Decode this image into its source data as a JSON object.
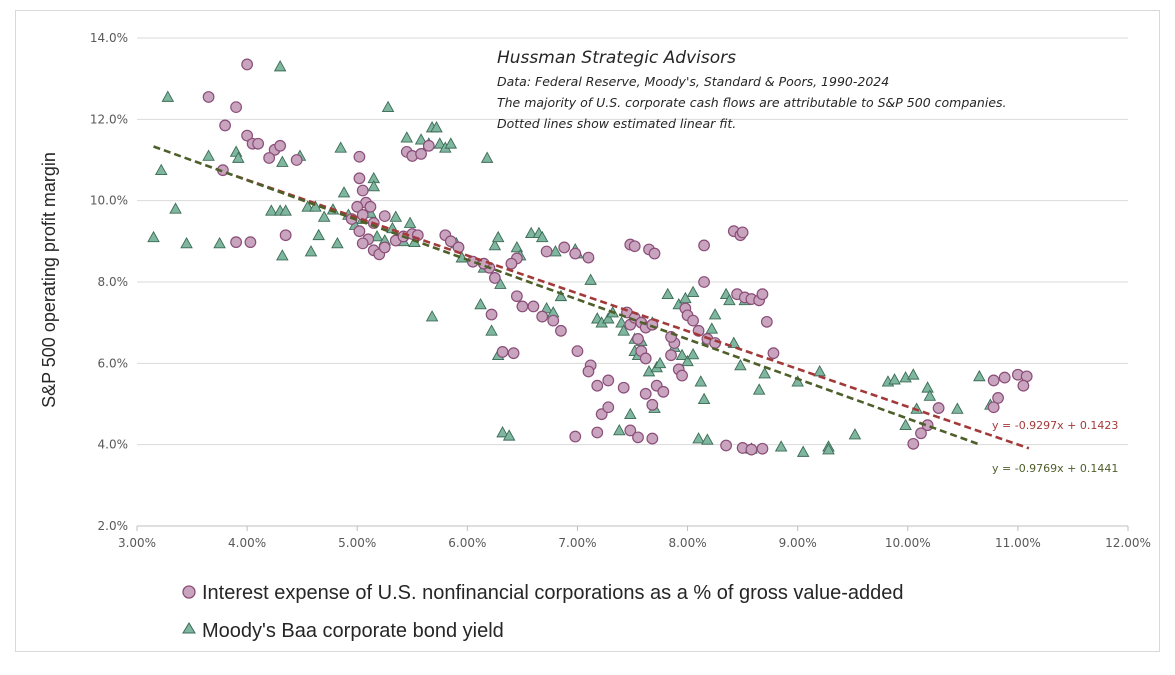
{
  "chart_data": {
    "type": "scatter",
    "ylabel": "S&P 500 operating profit margin",
    "xlabel": "",
    "xlim": [
      0.03,
      0.12
    ],
    "ylim": [
      0.02,
      0.14
    ],
    "x_ticks": [
      "3.00%",
      "4.00%",
      "5.00%",
      "6.00%",
      "7.00%",
      "8.00%",
      "9.00%",
      "10.00%",
      "11.00%",
      "12.00%"
    ],
    "y_ticks": [
      "2.0%",
      "4.0%",
      "6.0%",
      "8.0%",
      "10.0%",
      "12.0%",
      "14.0%"
    ],
    "grid": "horizontal",
    "annotations": {
      "source_title": "Hussman Strategic Advisors",
      "lines": [
        "Data: Federal Reserve, Moody's, Standard & Poors, 1990-2024",
        "The majority of U.S. corporate cash flows are attributable to S&P 500 companies.",
        "Dotted lines show estimated linear fit."
      ]
    },
    "series": [
      {
        "name": "Interest expense of U.S. nonfinancial corporations as a % of gross value-added",
        "marker": "circle",
        "color": "#c9a4bf",
        "edge": "#8a4e78",
        "trend": {
          "slope": -0.9297,
          "intercept": 0.1423,
          "label": "y = -0.9297x + 0.1423",
          "color": "#a33a3a",
          "x_range": [
            0.039,
            0.111
          ]
        },
        "points": [
          [
            0.0365,
            0.1255
          ],
          [
            0.039,
            0.123
          ],
          [
            0.04,
            0.1335
          ],
          [
            0.038,
            0.1185
          ],
          [
            0.0378,
            0.1075
          ],
          [
            0.04,
            0.116
          ],
          [
            0.0405,
            0.114
          ],
          [
            0.041,
            0.114
          ],
          [
            0.0425,
            0.1125
          ],
          [
            0.043,
            0.1135
          ],
          [
            0.042,
            0.1105
          ],
          [
            0.0445,
            0.11
          ],
          [
            0.0435,
            0.0915
          ],
          [
            0.039,
            0.0898
          ],
          [
            0.0403,
            0.0898
          ],
          [
            0.0502,
            0.1108
          ],
          [
            0.0502,
            0.1055
          ],
          [
            0.0505,
            0.1025
          ],
          [
            0.0508,
            0.0995
          ],
          [
            0.05,
            0.0985
          ],
          [
            0.0512,
            0.0985
          ],
          [
            0.0505,
            0.0965
          ],
          [
            0.0495,
            0.0955
          ],
          [
            0.0515,
            0.0945
          ],
          [
            0.0525,
            0.0962
          ],
          [
            0.0502,
            0.0925
          ],
          [
            0.051,
            0.0905
          ],
          [
            0.0505,
            0.0895
          ],
          [
            0.0515,
            0.0878
          ],
          [
            0.052,
            0.0868
          ],
          [
            0.0525,
            0.0885
          ],
          [
            0.0535,
            0.0902
          ],
          [
            0.0542,
            0.0912
          ],
          [
            0.055,
            0.0918
          ],
          [
            0.0555,
            0.0915
          ],
          [
            0.0545,
            0.112
          ],
          [
            0.055,
            0.111
          ],
          [
            0.0558,
            0.1115
          ],
          [
            0.0565,
            0.1135
          ],
          [
            0.058,
            0.0915
          ],
          [
            0.0585,
            0.09
          ],
          [
            0.0592,
            0.0885
          ],
          [
            0.062,
            0.0835
          ],
          [
            0.0615,
            0.0845
          ],
          [
            0.0625,
            0.081
          ],
          [
            0.0605,
            0.085
          ],
          [
            0.0645,
            0.0858
          ],
          [
            0.064,
            0.0845
          ],
          [
            0.0642,
            0.0625
          ],
          [
            0.0632,
            0.0628
          ],
          [
            0.0622,
            0.072
          ],
          [
            0.0645,
            0.0765
          ],
          [
            0.065,
            0.074
          ],
          [
            0.066,
            0.074
          ],
          [
            0.0668,
            0.0715
          ],
          [
            0.0672,
            0.0875
          ],
          [
            0.0688,
            0.0885
          ],
          [
            0.0698,
            0.087
          ],
          [
            0.071,
            0.086
          ],
          [
            0.07,
            0.063
          ],
          [
            0.0685,
            0.068
          ],
          [
            0.0678,
            0.0705
          ],
          [
            0.0712,
            0.0595
          ],
          [
            0.071,
            0.058
          ],
          [
            0.0718,
            0.0545
          ],
          [
            0.0722,
            0.0475
          ],
          [
            0.0728,
            0.0492
          ],
          [
            0.0698,
            0.042
          ],
          [
            0.0718,
            0.043
          ],
          [
            0.0728,
            0.0558
          ],
          [
            0.0742,
            0.054
          ],
          [
            0.0745,
            0.0725
          ],
          [
            0.0748,
            0.0695
          ],
          [
            0.0752,
            0.0712
          ],
          [
            0.0758,
            0.07
          ],
          [
            0.0762,
            0.0688
          ],
          [
            0.0768,
            0.0695
          ],
          [
            0.0748,
            0.0892
          ],
          [
            0.0752,
            0.0888
          ],
          [
            0.0765,
            0.088
          ],
          [
            0.077,
            0.087
          ],
          [
            0.0755,
            0.066
          ],
          [
            0.0758,
            0.063
          ],
          [
            0.0762,
            0.0612
          ],
          [
            0.0748,
            0.0435
          ],
          [
            0.0755,
            0.0418
          ],
          [
            0.0768,
            0.0415
          ],
          [
            0.0772,
            0.0545
          ],
          [
            0.0778,
            0.053
          ],
          [
            0.0785,
            0.062
          ],
          [
            0.0788,
            0.065
          ],
          [
            0.0792,
            0.0585
          ],
          [
            0.0795,
            0.057
          ],
          [
            0.0762,
            0.0525
          ],
          [
            0.0768,
            0.0498
          ],
          [
            0.0785,
            0.0665
          ],
          [
            0.0798,
            0.0735
          ],
          [
            0.08,
            0.0718
          ],
          [
            0.0805,
            0.0705
          ],
          [
            0.081,
            0.068
          ],
          [
            0.0815,
            0.08
          ],
          [
            0.0815,
            0.089
          ],
          [
            0.0818,
            0.066
          ],
          [
            0.0825,
            0.065
          ],
          [
            0.0842,
            0.0925
          ],
          [
            0.0848,
            0.0915
          ],
          [
            0.085,
            0.0922
          ],
          [
            0.0845,
            0.077
          ],
          [
            0.0852,
            0.0762
          ],
          [
            0.0858,
            0.0758
          ],
          [
            0.0865,
            0.0755
          ],
          [
            0.0868,
            0.077
          ],
          [
            0.0872,
            0.0702
          ],
          [
            0.0878,
            0.0625
          ],
          [
            0.0835,
            0.0398
          ],
          [
            0.085,
            0.0392
          ],
          [
            0.0858,
            0.0388
          ],
          [
            0.0868,
            0.039
          ],
          [
            0.1005,
            0.0402
          ],
          [
            0.1012,
            0.0428
          ],
          [
            0.1018,
            0.0448
          ],
          [
            0.1028,
            0.049
          ],
          [
            0.1078,
            0.0492
          ],
          [
            0.1082,
            0.0515
          ],
          [
            0.1078,
            0.0558
          ],
          [
            0.1088,
            0.0565
          ],
          [
            0.11,
            0.0572
          ],
          [
            0.1108,
            0.0568
          ],
          [
            0.1105,
            0.0545
          ]
        ]
      },
      {
        "name": "Moody's Baa corporate bond yield",
        "marker": "triangle",
        "color": "#7fb6a0",
        "edge": "#3b6b55",
        "trend": {
          "slope": -0.9769,
          "intercept": 0.1441,
          "label": "y = -0.9769x + 0.1441",
          "color": "#4e5f2a",
          "x_range": [
            0.0315,
            0.1065
          ]
        },
        "points": [
          [
            0.0315,
            0.091
          ],
          [
            0.0322,
            0.1075
          ],
          [
            0.0328,
            0.1255
          ],
          [
            0.0335,
            0.098
          ],
          [
            0.0345,
            0.0895
          ],
          [
            0.0365,
            0.111
          ],
          [
            0.0375,
            0.0895
          ],
          [
            0.039,
            0.112
          ],
          [
            0.0392,
            0.1105
          ],
          [
            0.0422,
            0.0975
          ],
          [
            0.043,
            0.0975
          ],
          [
            0.0432,
            0.0865
          ],
          [
            0.043,
            0.133
          ],
          [
            0.0435,
            0.0975
          ],
          [
            0.0432,
            0.1095
          ],
          [
            0.0448,
            0.111
          ],
          [
            0.0455,
            0.0985
          ],
          [
            0.0462,
            0.0985
          ],
          [
            0.0465,
            0.0915
          ],
          [
            0.0458,
            0.0875
          ],
          [
            0.047,
            0.096
          ],
          [
            0.0478,
            0.0978
          ],
          [
            0.0482,
            0.0895
          ],
          [
            0.0485,
            0.113
          ],
          [
            0.0488,
            0.102
          ],
          [
            0.0492,
            0.0965
          ],
          [
            0.0498,
            0.094
          ],
          [
            0.0505,
            0.0955
          ],
          [
            0.0512,
            0.097
          ],
          [
            0.0515,
            0.1055
          ],
          [
            0.0515,
            0.1035
          ],
          [
            0.0518,
            0.0912
          ],
          [
            0.0525,
            0.0902
          ],
          [
            0.0532,
            0.0932
          ],
          [
            0.0528,
            0.123
          ],
          [
            0.0535,
            0.096
          ],
          [
            0.0542,
            0.09
          ],
          [
            0.0548,
            0.0945
          ],
          [
            0.0545,
            0.1155
          ],
          [
            0.0552,
            0.0898
          ],
          [
            0.0558,
            0.115
          ],
          [
            0.0565,
            0.114
          ],
          [
            0.0568,
            0.0715
          ],
          [
            0.0568,
            0.118
          ],
          [
            0.0572,
            0.118
          ],
          [
            0.0575,
            0.114
          ],
          [
            0.058,
            0.113
          ],
          [
            0.0585,
            0.114
          ],
          [
            0.059,
            0.0895
          ],
          [
            0.0595,
            0.086
          ],
          [
            0.0612,
            0.0745
          ],
          [
            0.0615,
            0.0835
          ],
          [
            0.0618,
            0.1105
          ],
          [
            0.0622,
            0.068
          ],
          [
            0.0625,
            0.089
          ],
          [
            0.0628,
            0.091
          ],
          [
            0.063,
            0.0795
          ],
          [
            0.0628,
            0.062
          ],
          [
            0.0632,
            0.043
          ],
          [
            0.0638,
            0.0422
          ],
          [
            0.0645,
            0.0885
          ],
          [
            0.0648,
            0.0865
          ],
          [
            0.0658,
            0.092
          ],
          [
            0.0665,
            0.092
          ],
          [
            0.0668,
            0.091
          ],
          [
            0.0672,
            0.0735
          ],
          [
            0.0678,
            0.0725
          ],
          [
            0.068,
            0.0875
          ],
          [
            0.0685,
            0.0765
          ],
          [
            0.0698,
            0.088
          ],
          [
            0.07,
            0.087
          ],
          [
            0.0712,
            0.0805
          ],
          [
            0.0718,
            0.071
          ],
          [
            0.0722,
            0.07
          ],
          [
            0.0728,
            0.071
          ],
          [
            0.0732,
            0.0725
          ],
          [
            0.074,
            0.07
          ],
          [
            0.0742,
            0.068
          ],
          [
            0.0738,
            0.0435
          ],
          [
            0.0748,
            0.0475
          ],
          [
            0.0752,
            0.063
          ],
          [
            0.0752,
            0.066
          ],
          [
            0.0755,
            0.062
          ],
          [
            0.0758,
            0.0655
          ],
          [
            0.0765,
            0.058
          ],
          [
            0.0768,
            0.07
          ],
          [
            0.077,
            0.049
          ],
          [
            0.0772,
            0.059
          ],
          [
            0.0775,
            0.06
          ],
          [
            0.0782,
            0.077
          ],
          [
            0.0788,
            0.064
          ],
          [
            0.0792,
            0.0745
          ],
          [
            0.0795,
            0.062
          ],
          [
            0.0798,
            0.076
          ],
          [
            0.08,
            0.0605
          ],
          [
            0.0805,
            0.0775
          ],
          [
            0.0805,
            0.0622
          ],
          [
            0.081,
            0.0415
          ],
          [
            0.0812,
            0.0555
          ],
          [
            0.0815,
            0.0512
          ],
          [
            0.0818,
            0.0412
          ],
          [
            0.0818,
            0.066
          ],
          [
            0.0822,
            0.0685
          ],
          [
            0.0825,
            0.072
          ],
          [
            0.0835,
            0.077
          ],
          [
            0.0838,
            0.0755
          ],
          [
            0.0842,
            0.065
          ],
          [
            0.0848,
            0.0595
          ],
          [
            0.0852,
            0.0755
          ],
          [
            0.0858,
            0.039
          ],
          [
            0.0865,
            0.0535
          ],
          [
            0.087,
            0.0575
          ],
          [
            0.0885,
            0.0395
          ],
          [
            0.09,
            0.0555
          ],
          [
            0.0905,
            0.0382
          ],
          [
            0.092,
            0.058
          ],
          [
            0.0928,
            0.0395
          ],
          [
            0.0928,
            0.0388
          ],
          [
            0.0952,
            0.0425
          ],
          [
            0.0982,
            0.0555
          ],
          [
            0.0988,
            0.056
          ],
          [
            0.0998,
            0.0565
          ],
          [
            0.1005,
            0.0572
          ],
          [
            0.0998,
            0.0448
          ],
          [
            0.1008,
            0.0488
          ],
          [
            0.1018,
            0.054
          ],
          [
            0.102,
            0.052
          ],
          [
            0.1045,
            0.0488
          ],
          [
            0.1065,
            0.0568
          ],
          [
            0.1075,
            0.0498
          ]
        ]
      }
    ]
  }
}
